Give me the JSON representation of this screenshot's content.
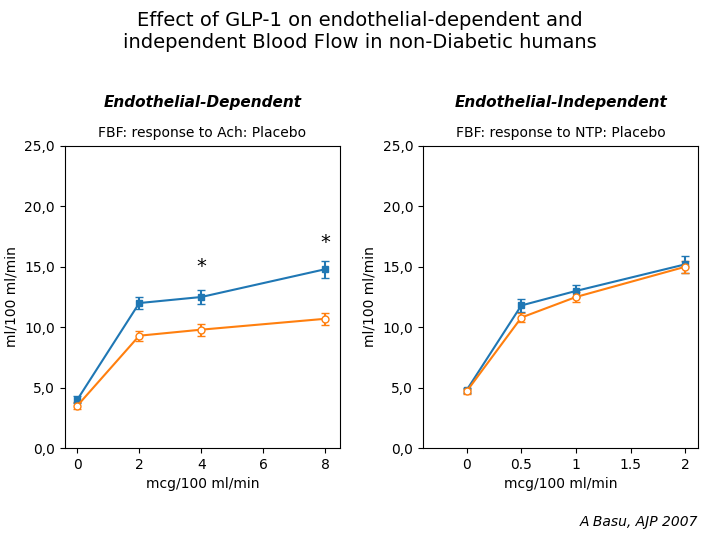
{
  "title": "Effect of GLP-1 on endothelial-dependent and\nindependent Blood Flow in non-Diabetic humans",
  "annotations": [
    {
      "text": "A Basu, AJP 2007"
    }
  ],
  "chart_data": [
    {
      "type": "line",
      "title": "Endothelial-Dependent",
      "subtitle": "FBF: response to Ach: Placebo",
      "x_label": "mcg/100 ml/min",
      "y_label": "ml/100 ml/min",
      "x": [
        0,
        2,
        4,
        8
      ],
      "series": [
        {
          "marker": "square",
          "values": [
            4.0,
            12.0,
            12.5,
            14.8
          ],
          "yerr": [
            0.3,
            0.5,
            0.6,
            0.7
          ]
        },
        {
          "marker": "circle",
          "values": [
            3.5,
            9.3,
            9.8,
            10.7
          ],
          "yerr": [
            0.3,
            0.4,
            0.5,
            0.5
          ]
        }
      ],
      "xlim": [
        -0.4,
        8.48
      ],
      "xticks": [
        0,
        2,
        4,
        6,
        8
      ],
      "ylim": [
        0,
        25
      ],
      "yticks": [
        {
          "value": 0.0,
          "label": "0,0"
        },
        {
          "value": 5.0,
          "label": "5,0"
        },
        {
          "value": 10.0,
          "label": "10,0"
        },
        {
          "value": 15.0,
          "label": "15,0"
        },
        {
          "value": 20.0,
          "label": "20,0"
        },
        {
          "value": 25.0,
          "label": "25,0"
        }
      ],
      "annotations": [
        {
          "text": "*",
          "x": 4,
          "y": 14.2
        },
        {
          "text": "*",
          "x": 8,
          "y": 16.2
        }
      ]
    },
    {
      "type": "line",
      "title": "Endothelial-Independent",
      "subtitle": "FBF: response to NTP: Placebo",
      "x_label": "mcg/100 ml/min",
      "y_label": "ml/100 ml/min",
      "x": [
        0,
        0.5,
        1,
        2
      ],
      "series": [
        {
          "marker": "square",
          "values": [
            4.8,
            11.8,
            13.0,
            15.2
          ],
          "yerr": [
            0.2,
            0.5,
            0.5,
            0.7
          ]
        },
        {
          "marker": "circle",
          "values": [
            4.7,
            10.8,
            12.5,
            15.0
          ],
          "yerr": [
            0.2,
            0.4,
            0.4,
            0.5
          ]
        }
      ],
      "xlim": [
        -0.4,
        2.12
      ],
      "xticks": [
        0,
        0.5,
        1,
        1.5,
        2
      ],
      "ylim": [
        0,
        25
      ],
      "yticks": [
        {
          "value": 0.0,
          "label": "0,0"
        },
        {
          "value": 5.0,
          "label": "5,0"
        },
        {
          "value": 10.0,
          "label": "10,0"
        },
        {
          "value": 15.0,
          "label": "15,0"
        },
        {
          "value": 20.0,
          "label": "20,0"
        },
        {
          "value": 25.0,
          "label": "25,0"
        }
      ]
    }
  ]
}
